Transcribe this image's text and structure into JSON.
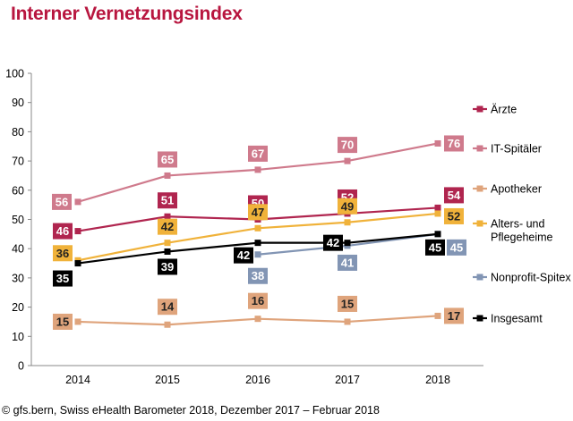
{
  "page": {
    "title": "Interner Vernetzungsindex",
    "footer": "©   gfs.bern, Swiss eHealth Barometer 2018, Dezember 2017 – Februar 2018"
  },
  "chart_data": {
    "type": "line",
    "title": "Interner Vernetzungsindex",
    "xlabel": "",
    "ylabel": "",
    "ylim": [
      0,
      100
    ],
    "yticks": [
      0,
      10,
      20,
      30,
      40,
      50,
      60,
      70,
      80,
      90,
      100
    ],
    "categories": [
      "2014",
      "2015",
      "2016",
      "2017",
      "2018"
    ],
    "grid": false,
    "legend_position": "right",
    "series": [
      {
        "name": "Ärzte",
        "color": "#b0254f",
        "text_color": "#ffffff",
        "values": [
          46,
          51,
          50,
          52,
          54
        ]
      },
      {
        "name": "IT-Spitäler",
        "color": "#cf7a8c",
        "text_color": "#ffffff",
        "values": [
          56,
          65,
          67,
          70,
          76
        ]
      },
      {
        "name": "Apotheker",
        "color": "#dfa47c",
        "text_color": "#222222",
        "values": [
          15,
          14,
          16,
          15,
          17
        ]
      },
      {
        "name": "Alters- und Pflegeheime",
        "color": "#f0b23a",
        "text_color": "#222222",
        "values": [
          36,
          42,
          47,
          49,
          52
        ]
      },
      {
        "name": "Nonprofit-Spitex",
        "color": "#8295b4",
        "text_color": "#ffffff",
        "values": [
          null,
          null,
          38,
          41,
          45
        ]
      },
      {
        "name": "Insgesamt",
        "color": "#000000",
        "text_color": "#ffffff",
        "values": [
          35,
          39,
          42,
          42,
          45
        ]
      }
    ]
  }
}
